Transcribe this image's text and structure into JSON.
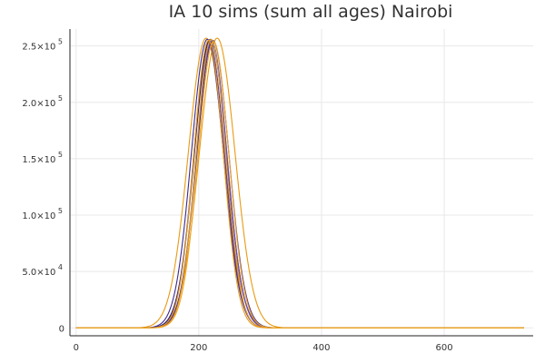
{
  "chart_data": {
    "type": "line",
    "title": "IA 10 sims (sum all ages) Nairobi",
    "xlabel": "",
    "ylabel": "",
    "xlim": [
      -10,
      745
    ],
    "ylim": [
      -7000,
      265000
    ],
    "x_ticks": [
      {
        "value": 0,
        "label": "0"
      },
      {
        "value": 200,
        "label": "200"
      },
      {
        "value": 400,
        "label": "400"
      },
      {
        "value": 600,
        "label": "600"
      }
    ],
    "y_ticks": [
      {
        "value": 0,
        "mant": "0",
        "exp": ""
      },
      {
        "value": 50000,
        "mant": "5.0×10",
        "exp": "4"
      },
      {
        "value": 100000,
        "mant": "1.0×10",
        "exp": "5"
      },
      {
        "value": 150000,
        "mant": "1.5×10",
        "exp": "5"
      },
      {
        "value": 200000,
        "mant": "2.0×10",
        "exp": "5"
      },
      {
        "value": 250000,
        "mant": "2.5×10",
        "exp": "5"
      }
    ],
    "grid": true,
    "legend": "none",
    "x_range": [
      0,
      730
    ],
    "series": [
      {
        "peak_x": 212,
        "peak_y": 257000,
        "width": 29,
        "color": "#e89a14"
      },
      {
        "peak_x": 230,
        "peak_y": 257000,
        "width": 29,
        "color": "#e89a14"
      },
      {
        "peak_x": 214,
        "peak_y": 256000,
        "width": 26,
        "color": "#3d2b8c"
      },
      {
        "peak_x": 217,
        "peak_y": 255000,
        "width": 25,
        "color": "#5a3fa6"
      },
      {
        "peak_x": 219,
        "peak_y": 256000,
        "width": 26,
        "color": "#2f2278"
      },
      {
        "peak_x": 221,
        "peak_y": 254000,
        "width": 25,
        "color": "#6a4fb8"
      },
      {
        "peak_x": 223,
        "peak_y": 255000,
        "width": 26,
        "color": "#4a3596"
      },
      {
        "peak_x": 216,
        "peak_y": 255000,
        "width": 24,
        "color": "#e89a14"
      },
      {
        "peak_x": 220,
        "peak_y": 256000,
        "width": 24,
        "color": "#e89a14"
      },
      {
        "peak_x": 224,
        "peak_y": 254000,
        "width": 25,
        "color": "#f0a520"
      }
    ]
  }
}
